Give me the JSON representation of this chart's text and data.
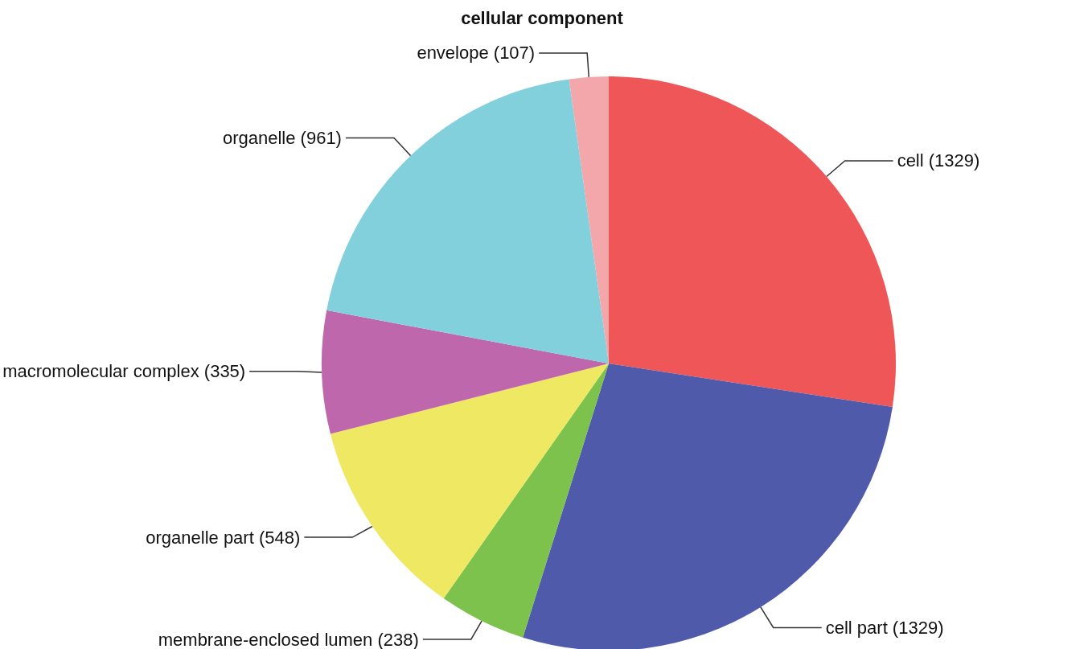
{
  "chart_data": {
    "type": "pie",
    "title": "cellular component",
    "categories": [
      "cell",
      "cell part",
      "membrane-enclosed lumen",
      "organelle part",
      "macromolecular complex",
      "organelle",
      "envelope"
    ],
    "values": [
      1329,
      1329,
      238,
      548,
      335,
      961,
      107
    ],
    "value_labels": [
      "(1329)",
      "(1329)",
      "(238)",
      "(548)",
      "(335)",
      "(961)",
      "(107)"
    ],
    "colors": [
      "#ef5657",
      "#505aaa",
      "#7cc24c",
      "#efe862",
      "#bf67ad",
      "#82d0dc",
      "#f4a7ab"
    ]
  }
}
